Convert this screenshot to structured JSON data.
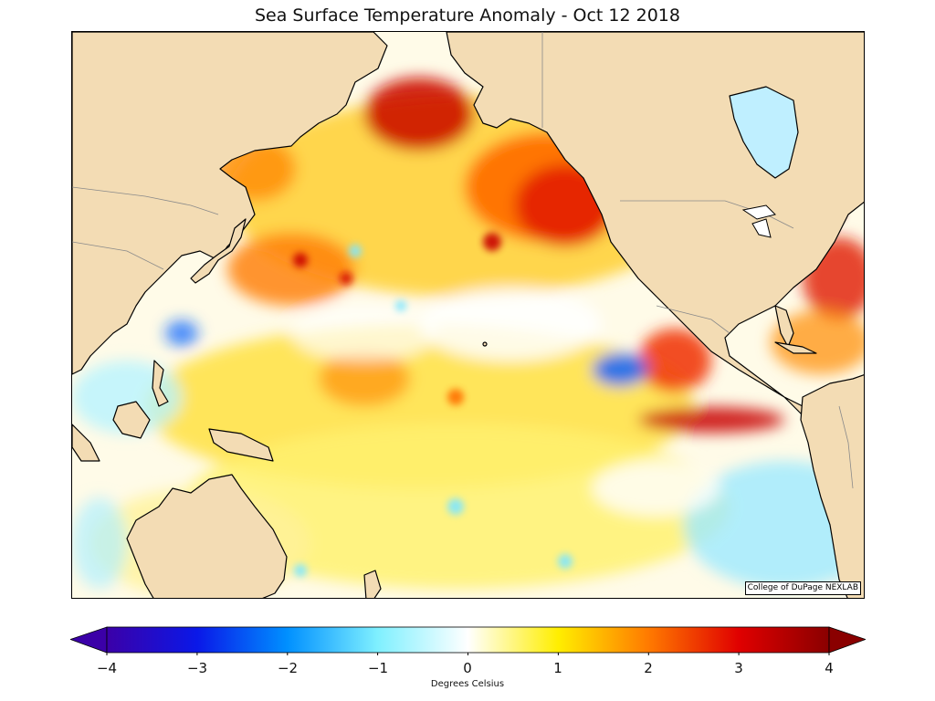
{
  "title": "Sea Surface Temperature Anomaly - Oct 12 2018",
  "credit": "College of DuPage NEXLAB",
  "colorbar": {
    "label": "Degrees Celsius",
    "ticks": [
      "−4",
      "−3",
      "−2",
      "−1",
      "0",
      "1",
      "2",
      "3",
      "4"
    ],
    "min": -4,
    "max": 4,
    "extend": "both",
    "colors": [
      "#3b00a8",
      "#0a18e8",
      "#0090ff",
      "#7ff0ff",
      "#ffffff",
      "#ffee00",
      "#ff7a00",
      "#e00000",
      "#8a0000"
    ]
  },
  "colors": {
    "land": "#f3dcb4",
    "coastline": "#000000",
    "borders": "#8a8a8a",
    "neutral_ocean": "#fffbe8"
  }
}
